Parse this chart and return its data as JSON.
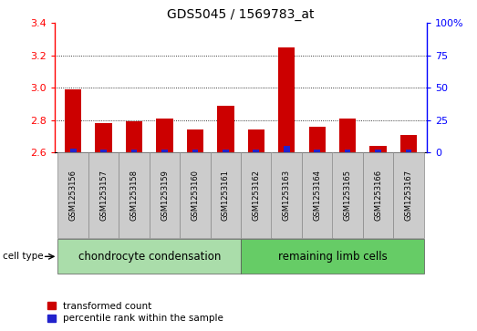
{
  "title": "GDS5045 / 1569783_at",
  "samples": [
    "GSM1253156",
    "GSM1253157",
    "GSM1253158",
    "GSM1253159",
    "GSM1253160",
    "GSM1253161",
    "GSM1253162",
    "GSM1253163",
    "GSM1253164",
    "GSM1253165",
    "GSM1253166",
    "GSM1253167"
  ],
  "red_values": [
    2.99,
    2.78,
    2.79,
    2.81,
    2.74,
    2.89,
    2.74,
    3.25,
    2.76,
    2.81,
    2.64,
    2.71
  ],
  "blue_percentile": [
    3,
    2,
    2,
    2,
    2,
    2,
    2,
    5,
    2,
    2,
    2,
    2
  ],
  "baseline": 2.6,
  "ylim_left": [
    2.6,
    3.4
  ],
  "ylim_right": [
    0,
    100
  ],
  "yticks_left": [
    2.6,
    2.8,
    3.0,
    3.2,
    3.4
  ],
  "yticks_right": [
    0,
    25,
    50,
    75,
    100
  ],
  "ytick_labels_right": [
    "0",
    "25",
    "50",
    "75",
    "100%"
  ],
  "group1_label": "chondrocyte condensation",
  "group2_label": "remaining limb cells",
  "group1_count": 6,
  "group2_count": 6,
  "cell_type_label": "cell type",
  "legend_red": "transformed count",
  "legend_blue": "percentile rank within the sample",
  "bar_width": 0.55,
  "blue_bar_width": 0.2,
  "red_color": "#cc0000",
  "blue_color": "#2222cc",
  "group1_bg": "#aaddaa",
  "group2_bg": "#66cc66",
  "xticklabel_bg": "#cccccc",
  "grid_color": "#000000",
  "title_fontsize": 10,
  "tick_fontsize": 8,
  "group_label_fontsize": 8.5
}
